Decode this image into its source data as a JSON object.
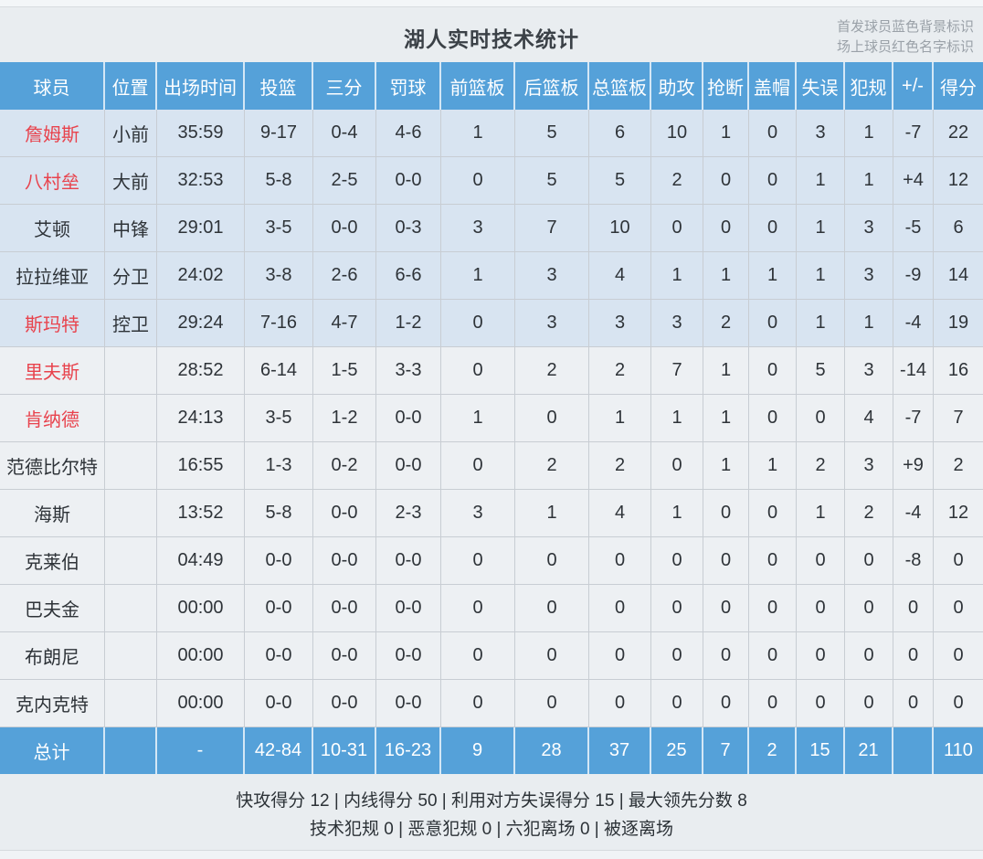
{
  "title": "湖人实时技术统计",
  "legend": {
    "line1": "首发球员蓝色背景标识",
    "line2": "场上球员红色名字标识"
  },
  "colors": {
    "header_blue": "#55a1d9",
    "starter_row_bg": "#d8e4f1",
    "bench_row_bg": "#edf0f3",
    "red_name": "#e8434d",
    "page_bg": "#e9edf0"
  },
  "table": {
    "headers": [
      "球员",
      "位置",
      "出场时间",
      "投篮",
      "三分",
      "罚球",
      "前篮板",
      "后篮板",
      "总篮板",
      "助攻",
      "抢断",
      "盖帽",
      "失误",
      "犯规",
      "+/-",
      "得分"
    ],
    "rows": [
      {
        "starter": true,
        "red_name": true,
        "cells": [
          "詹姆斯",
          "小前",
          "35:59",
          "9-17",
          "0-4",
          "4-6",
          "1",
          "5",
          "6",
          "10",
          "1",
          "0",
          "3",
          "1",
          "-7",
          "22"
        ]
      },
      {
        "starter": true,
        "red_name": true,
        "cells": [
          "八村垒",
          "大前",
          "32:53",
          "5-8",
          "2-5",
          "0-0",
          "0",
          "5",
          "5",
          "2",
          "0",
          "0",
          "1",
          "1",
          "+4",
          "12"
        ]
      },
      {
        "starter": true,
        "red_name": false,
        "cells": [
          "艾顿",
          "中锋",
          "29:01",
          "3-5",
          "0-0",
          "0-3",
          "3",
          "7",
          "10",
          "0",
          "0",
          "0",
          "1",
          "3",
          "-5",
          "6"
        ]
      },
      {
        "starter": true,
        "red_name": false,
        "cells": [
          "拉拉维亚",
          "分卫",
          "24:02",
          "3-8",
          "2-6",
          "6-6",
          "1",
          "3",
          "4",
          "1",
          "1",
          "1",
          "1",
          "3",
          "-9",
          "14"
        ]
      },
      {
        "starter": true,
        "red_name": true,
        "cells": [
          "斯玛特",
          "控卫",
          "29:24",
          "7-16",
          "4-7",
          "1-2",
          "0",
          "3",
          "3",
          "3",
          "2",
          "0",
          "1",
          "1",
          "-4",
          "19"
        ]
      },
      {
        "starter": false,
        "red_name": true,
        "cells": [
          "里夫斯",
          "",
          "28:52",
          "6-14",
          "1-5",
          "3-3",
          "0",
          "2",
          "2",
          "7",
          "1",
          "0",
          "5",
          "3",
          "-14",
          "16"
        ]
      },
      {
        "starter": false,
        "red_name": true,
        "cells": [
          "肯纳德",
          "",
          "24:13",
          "3-5",
          "1-2",
          "0-0",
          "1",
          "0",
          "1",
          "1",
          "1",
          "0",
          "0",
          "4",
          "-7",
          "7"
        ]
      },
      {
        "starter": false,
        "red_name": false,
        "cells": [
          "范德比尔特",
          "",
          "16:55",
          "1-3",
          "0-2",
          "0-0",
          "0",
          "2",
          "2",
          "0",
          "1",
          "1",
          "2",
          "3",
          "+9",
          "2"
        ]
      },
      {
        "starter": false,
        "red_name": false,
        "cells": [
          "海斯",
          "",
          "13:52",
          "5-8",
          "0-0",
          "2-3",
          "3",
          "1",
          "4",
          "1",
          "0",
          "0",
          "1",
          "2",
          "-4",
          "12"
        ]
      },
      {
        "starter": false,
        "red_name": false,
        "cells": [
          "克莱伯",
          "",
          "04:49",
          "0-0",
          "0-0",
          "0-0",
          "0",
          "0",
          "0",
          "0",
          "0",
          "0",
          "0",
          "0",
          "-8",
          "0"
        ]
      },
      {
        "starter": false,
        "red_name": false,
        "cells": [
          "巴夫金",
          "",
          "00:00",
          "0-0",
          "0-0",
          "0-0",
          "0",
          "0",
          "0",
          "0",
          "0",
          "0",
          "0",
          "0",
          "0",
          "0"
        ]
      },
      {
        "starter": false,
        "red_name": false,
        "cells": [
          "布朗尼",
          "",
          "00:00",
          "0-0",
          "0-0",
          "0-0",
          "0",
          "0",
          "0",
          "0",
          "0",
          "0",
          "0",
          "0",
          "0",
          "0"
        ]
      },
      {
        "starter": false,
        "red_name": false,
        "cells": [
          "克内克特",
          "",
          "00:00",
          "0-0",
          "0-0",
          "0-0",
          "0",
          "0",
          "0",
          "0",
          "0",
          "0",
          "0",
          "0",
          "0",
          "0"
        ]
      }
    ],
    "total": {
      "cells": [
        "总计",
        "",
        "-",
        "42-84",
        "10-31",
        "16-23",
        "9",
        "28",
        "37",
        "25",
        "7",
        "2",
        "15",
        "21",
        "",
        "110"
      ]
    }
  },
  "footer": {
    "line1": "快攻得分 12 | 内线得分 50 | 利用对方失误得分 15 | 最大领先分数 8",
    "line2": "技术犯规 0 | 恶意犯规 0 | 六犯离场 0 | 被逐离场"
  }
}
